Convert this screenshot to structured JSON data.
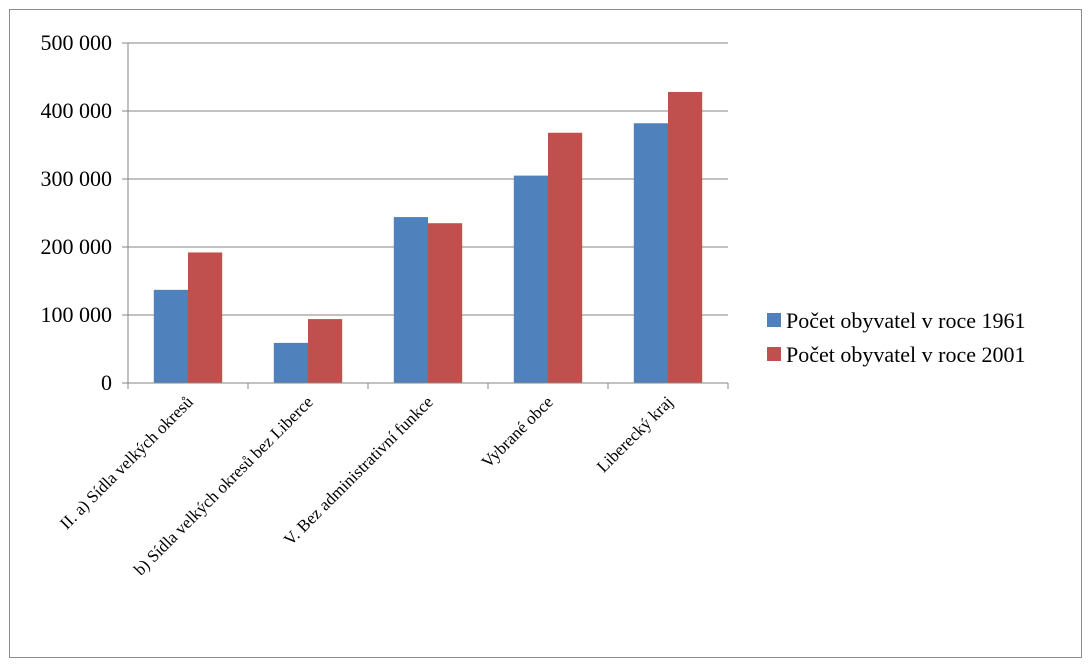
{
  "chart_data": {
    "type": "bar",
    "categories": [
      "II. a) Sídla velkých okresů",
      "b) Sídla velkých okresů bez Liberce",
      "V. Bez administrativní funkce",
      "Vybrané obce",
      "Liberecký kraj"
    ],
    "series": [
      {
        "name": "Počet obyvatel v roce 1961",
        "color": "#4f81bd",
        "values": [
          137000,
          59000,
          244000,
          305000,
          382000
        ]
      },
      {
        "name": "Počet obyvatel v roce 2001",
        "color": "#c0504d",
        "values": [
          192000,
          94000,
          235000,
          368000,
          428000
        ]
      }
    ],
    "ylim": [
      0,
      500000
    ],
    "yticks": [
      0,
      100000,
      200000,
      300000,
      400000,
      500000
    ],
    "ytick_labels": [
      "0",
      "100 000",
      "200 000",
      "300 000",
      "400 000",
      "500 000"
    ],
    "grid": true,
    "legend_position": "right",
    "title": "",
    "xlabel": "",
    "ylabel": ""
  }
}
